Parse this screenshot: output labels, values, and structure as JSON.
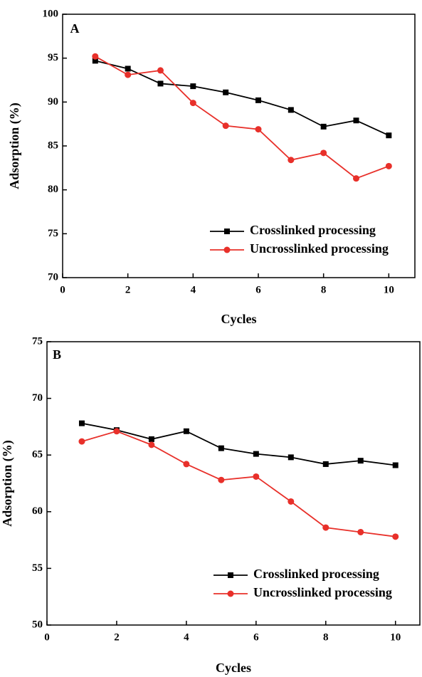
{
  "chart_data": [
    {
      "type": "line",
      "annotation": "A",
      "x_label": "Cycles",
      "y_label": "Adsorption (%)",
      "x": [
        1,
        2,
        3,
        4,
        5,
        6,
        7,
        8,
        9,
        10
      ],
      "series": [
        {
          "name": "Crosslinked processing",
          "color": "#000000",
          "marker": "square",
          "values": [
            94.7,
            93.8,
            92.1,
            91.8,
            91.1,
            90.2,
            89.1,
            87.2,
            87.9,
            86.2
          ]
        },
        {
          "name": "Uncrosslinked processing",
          "color": "#e8302a",
          "marker": "circle",
          "values": [
            95.2,
            93.1,
            93.6,
            89.9,
            87.3,
            86.9,
            83.4,
            84.2,
            81.3,
            82.7
          ]
        }
      ],
      "xlim": [
        0,
        10.8
      ],
      "xticks": [
        0,
        2,
        4,
        6,
        8,
        10
      ],
      "ylim": [
        70,
        100
      ],
      "yticks": [
        70,
        75,
        80,
        85,
        90,
        95,
        100
      ],
      "legend": "lower right",
      "grid": false
    },
    {
      "type": "line",
      "annotation": "B",
      "x_label": "Cycles",
      "y_label": "Adsorption (%)",
      "x": [
        1,
        2,
        3,
        4,
        5,
        6,
        7,
        8,
        9,
        10
      ],
      "series": [
        {
          "name": "Crosslinked processing",
          "color": "#000000",
          "marker": "square",
          "values": [
            67.8,
            67.2,
            66.4,
            67.1,
            65.6,
            65.1,
            64.8,
            64.2,
            64.5,
            64.1
          ]
        },
        {
          "name": "Uncrosslinked processing",
          "color": "#e8302a",
          "marker": "circle",
          "values": [
            66.2,
            67.1,
            65.9,
            64.2,
            62.8,
            63.1,
            60.9,
            58.6,
            58.2,
            57.8
          ]
        }
      ],
      "xlim": [
        0,
        10.7
      ],
      "xticks": [
        0,
        2,
        4,
        6,
        8,
        10
      ],
      "ylim": [
        50,
        75
      ],
      "yticks": [
        50,
        55,
        60,
        65,
        70,
        75
      ],
      "legend": "lower right",
      "grid": false
    }
  ]
}
